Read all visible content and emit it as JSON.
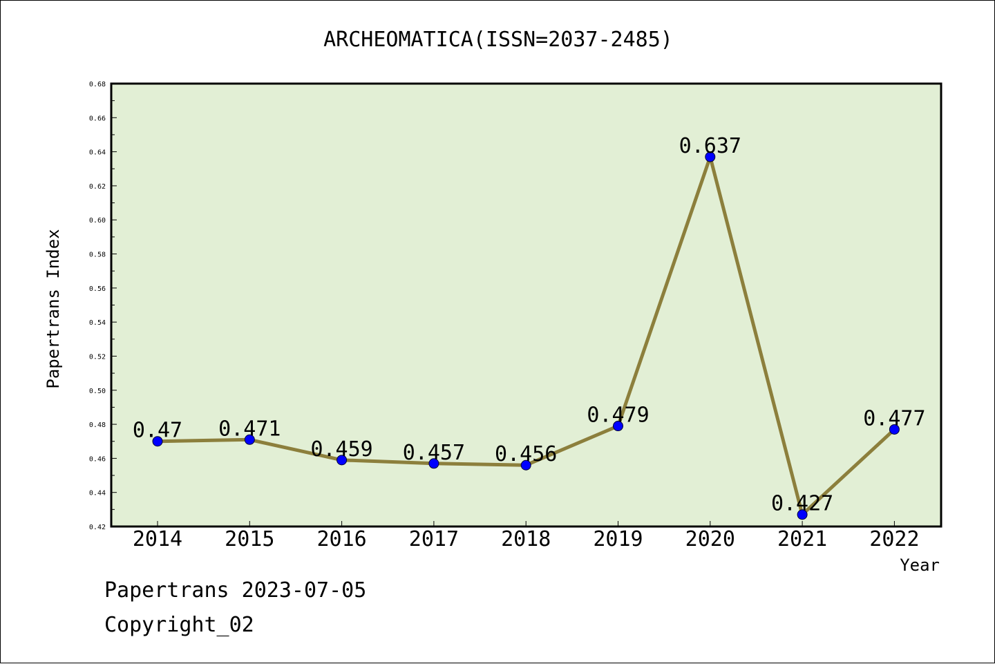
{
  "chart_data": {
    "type": "line",
    "title": "ARCHEOMATICA(ISSN=2037-2485)",
    "xlabel": "Year",
    "ylabel": "Papertrans Index",
    "categories": [
      "2014",
      "2015",
      "2016",
      "2017",
      "2018",
      "2019",
      "2020",
      "2021",
      "2022"
    ],
    "series": [
      {
        "values": [
          0.47,
          0.471,
          0.459,
          0.457,
          0.456,
          0.479,
          0.637,
          0.427,
          0.477
        ]
      }
    ],
    "data_labels": [
      "0.47",
      "0.471",
      "0.459",
      "0.457",
      "0.456",
      "0.479",
      "0.637",
      "0.427",
      "0.477"
    ],
    "ylim": [
      0.42,
      0.68
    ],
    "yticks": [
      "0.42",
      "0.44",
      "0.46",
      "0.48",
      "0.50",
      "0.52",
      "0.54",
      "0.56",
      "0.58",
      "0.60",
      "0.62",
      "0.64",
      "0.66",
      "0.68"
    ],
    "grid": false,
    "legend": "none",
    "colors": {
      "plot_background": "#e2efd5",
      "line": "#8c7f3c",
      "marker": "#0000ff"
    }
  },
  "footer": {
    "line1": "Papertrans 2023-07-05",
    "line2": "Copyright_02"
  }
}
